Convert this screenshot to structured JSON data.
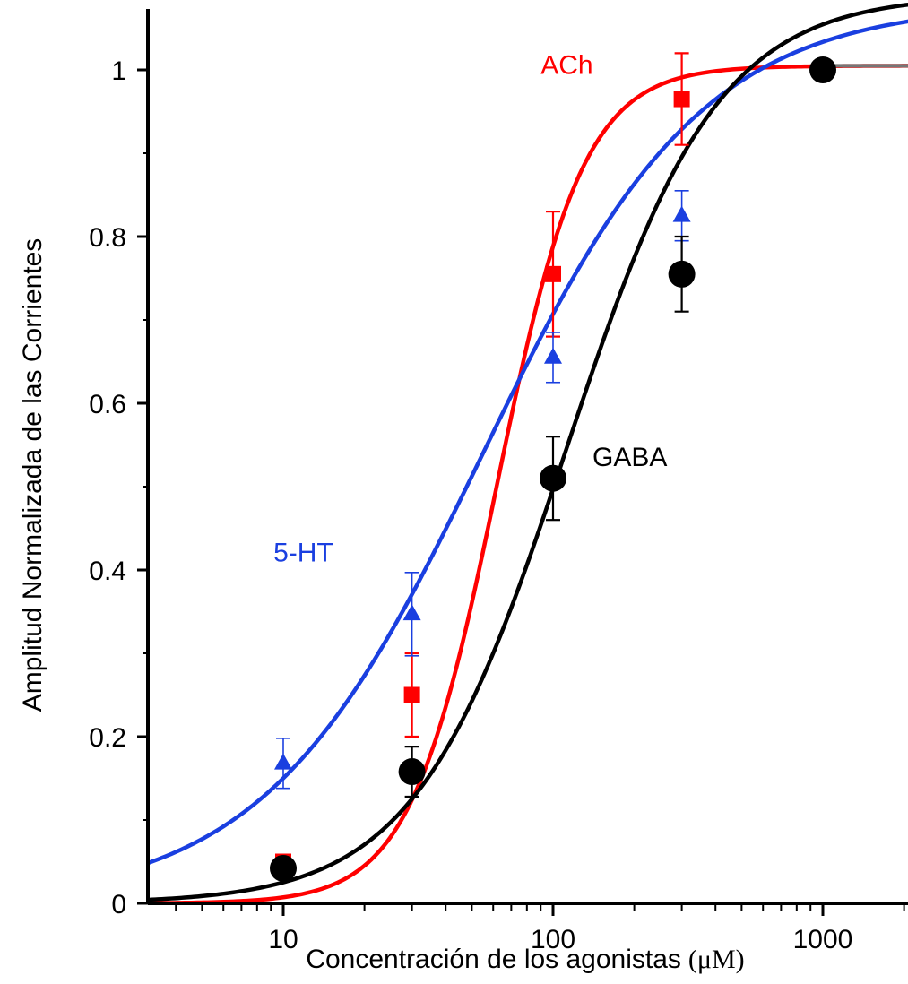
{
  "chart_data": {
    "type": "scatter",
    "title": "",
    "xlabel": "Concentración de los agonistas",
    "xlabel_unit": "(μM)",
    "ylabel": "Amplitud Normalizada de las Corrientes",
    "xscale": "log",
    "xlim": [
      3,
      2000
    ],
    "ylim": [
      0,
      1.06
    ],
    "x_ticks": [
      10,
      100,
      1000
    ],
    "x_tick_labels": [
      "10",
      "100",
      "1000"
    ],
    "y_ticks": [
      0,
      0.2,
      0.4,
      0.6,
      0.8,
      1
    ],
    "y_tick_labels": [
      "0",
      "0.2",
      "0.4",
      "0.6",
      "0.8",
      "1"
    ],
    "grid": false,
    "legend": "none (inline series labels)",
    "series": [
      {
        "name": "ACh",
        "color": "#ff0000",
        "marker": "square",
        "x": [
          10,
          30,
          100,
          300,
          1000
        ],
        "y": [
          0.05,
          0.25,
          0.755,
          0.965,
          1.0
        ],
        "err": [
          0.0,
          0.05,
          0.075,
          0.055,
          0.0
        ],
        "fit": {
          "ec50": 62,
          "hill": 2.7,
          "top": 1.005,
          "bottom": 0.0
        }
      },
      {
        "name": "5-HT",
        "color": "#1a3fe0",
        "marker": "triangle",
        "x": [
          10,
          30,
          100,
          300,
          1000
        ],
        "y": [
          0.168,
          0.347,
          0.655,
          0.825,
          0.998
        ],
        "err": [
          0.03,
          0.05,
          0.03,
          0.03,
          0.0
        ],
        "fit": {
          "ec50": 55,
          "hill": 1.07,
          "top": 1.08,
          "bottom": 0.0
        }
      },
      {
        "name": "GABA",
        "color": "#000000",
        "marker": "circle",
        "x": [
          10,
          30,
          100,
          300,
          1000
        ],
        "y": [
          0.042,
          0.158,
          0.51,
          0.755,
          1.0
        ],
        "err": [
          0.0,
          0.03,
          0.05,
          0.045,
          0.0
        ],
        "fit": {
          "ec50": 112,
          "hill": 1.55,
          "top": 1.09,
          "bottom": 0.0
        }
      }
    ],
    "annotations": [
      {
        "text": "ACh",
        "series": "ACh",
        "x": 90,
        "y": 0.995
      },
      {
        "text": "5-HT",
        "series": "5-HT",
        "x": 9.2,
        "y": 0.41
      },
      {
        "text": "GABA",
        "series": "GABA",
        "x": 140,
        "y": 0.525
      }
    ]
  }
}
